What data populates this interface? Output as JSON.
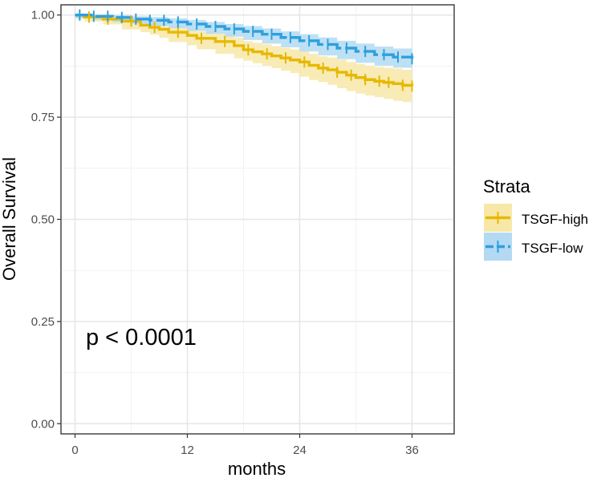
{
  "chart_data": {
    "type": "line",
    "subtype": "kaplan-meier",
    "title": "",
    "xlabel": "months",
    "ylabel": "Overall Survival",
    "xlim": [
      -1.5,
      40.5
    ],
    "ylim": [
      -0.025,
      1.025
    ],
    "xticks": [
      0,
      12,
      24,
      36
    ],
    "xtick_labels": [
      "0",
      "12",
      "24",
      "36"
    ],
    "yticks": [
      0,
      0.25,
      0.5,
      0.75,
      1.0
    ],
    "ytick_labels": [
      "0.00",
      "0.25",
      "0.50",
      "0.75",
      "1.00"
    ],
    "grid": true,
    "annotation": "p < 0.0001",
    "legend": {
      "title": "Strata",
      "position": "right",
      "entries": [
        "TSGF-high",
        "TSGF-low"
      ]
    },
    "series": [
      {
        "name": "TSGF-high",
        "color": "#E7B800",
        "band_color": "#F7E8A8",
        "dashed": false,
        "x": [
          0,
          1,
          3,
          5,
          7,
          8,
          9,
          10,
          12,
          13,
          15,
          17,
          18,
          19,
          20,
          21,
          22,
          23,
          24,
          25,
          26,
          27,
          28,
          29,
          30,
          31,
          32,
          33,
          34,
          35,
          36
        ],
        "y": [
          1.0,
          0.995,
          0.99,
          0.985,
          0.975,
          0.97,
          0.965,
          0.958,
          0.95,
          0.943,
          0.935,
          0.925,
          0.915,
          0.91,
          0.905,
          0.9,
          0.895,
          0.89,
          0.885,
          0.877,
          0.87,
          0.866,
          0.86,
          0.853,
          0.847,
          0.842,
          0.838,
          0.835,
          0.832,
          0.828,
          0.826
        ],
        "lower": [
          1.0,
          0.99,
          0.984,
          0.977,
          0.965,
          0.958,
          0.952,
          0.944,
          0.934,
          0.926,
          0.916,
          0.905,
          0.894,
          0.888,
          0.882,
          0.876,
          0.87,
          0.864,
          0.858,
          0.849,
          0.841,
          0.836,
          0.829,
          0.821,
          0.814,
          0.808,
          0.803,
          0.799,
          0.795,
          0.79,
          0.787
        ],
        "upper": [
          1.0,
          1.0,
          0.996,
          0.993,
          0.985,
          0.982,
          0.978,
          0.972,
          0.966,
          0.96,
          0.954,
          0.945,
          0.936,
          0.932,
          0.928,
          0.924,
          0.92,
          0.916,
          0.912,
          0.905,
          0.899,
          0.896,
          0.891,
          0.885,
          0.88,
          0.876,
          0.873,
          0.871,
          0.869,
          0.866,
          0.865
        ],
        "censor_x": [
          1.5,
          3.5,
          6,
          8.5,
          11,
          13.5,
          16,
          18.5,
          20.5,
          22.5,
          24.5,
          26.5,
          28,
          29.5,
          31,
          32.5,
          33.5,
          35,
          36
        ]
      },
      {
        "name": "TSGF-low",
        "color": "#2E9FDF",
        "band_color": "#B3DAF2",
        "dashed": true,
        "x": [
          0,
          2,
          4,
          6,
          8,
          10,
          12,
          14,
          16,
          18,
          20,
          22,
          24,
          26,
          28,
          30,
          32,
          34,
          36
        ],
        "y": [
          1.0,
          0.997,
          0.994,
          0.99,
          0.987,
          0.983,
          0.978,
          0.972,
          0.966,
          0.96,
          0.953,
          0.945,
          0.937,
          0.928,
          0.919,
          0.911,
          0.903,
          0.897,
          0.893
        ],
        "lower": [
          1.0,
          0.993,
          0.988,
          0.983,
          0.979,
          0.974,
          0.968,
          0.961,
          0.954,
          0.947,
          0.939,
          0.93,
          0.921,
          0.911,
          0.901,
          0.892,
          0.883,
          0.876,
          0.871
        ],
        "upper": [
          1.0,
          1.0,
          1.0,
          0.997,
          0.995,
          0.992,
          0.988,
          0.983,
          0.978,
          0.973,
          0.967,
          0.96,
          0.953,
          0.945,
          0.937,
          0.93,
          0.923,
          0.918,
          0.915
        ],
        "censor_x": [
          0.5,
          2,
          3.5,
          5,
          6.5,
          8,
          9.5,
          11,
          13,
          15,
          17,
          19,
          21,
          23,
          25,
          27,
          29,
          31,
          33,
          34.5,
          36
        ]
      }
    ]
  }
}
